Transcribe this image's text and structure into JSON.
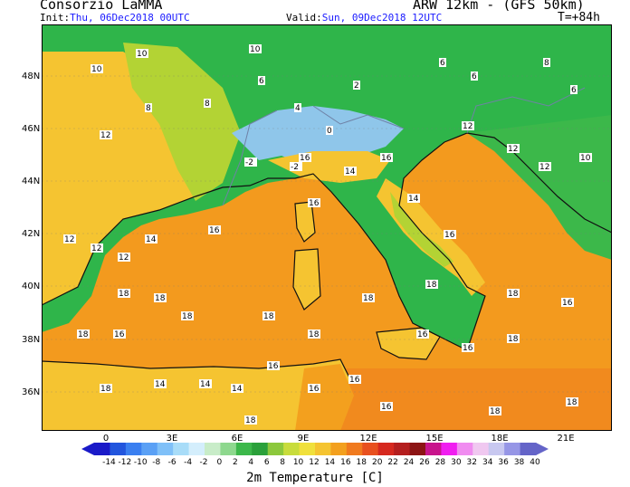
{
  "header": {
    "org": "Consorzio LaMMA",
    "model": "ARW 12km - (GFS 50km)",
    "init_label": "Init:",
    "init_value": "Thu, 06Dec2018 00UTC",
    "valid_label": "Valid:",
    "valid_value": "Sun, 09Dec2018 12UTC",
    "lead": "T=+84h"
  },
  "map": {
    "lat_labels": [
      "48N",
      "46N",
      "44N",
      "42N",
      "40N",
      "38N",
      "36N"
    ],
    "lon_labels": [
      "0",
      "3E",
      "6E",
      "9E",
      "12E",
      "15E",
      "18E",
      "21E"
    ],
    "colors": {
      "sea": "#f39a1e",
      "land_warm": "#f5c431",
      "land_mid": "#b3d334",
      "land_green": "#2fb54a",
      "alps": "#8fc6ea",
      "border": "#6f82a6"
    },
    "temp_labels": [
      "10",
      "10",
      "10",
      "8",
      "8",
      "12",
      "6",
      "4",
      "2",
      "-2",
      "-2",
      "0",
      "6",
      "6",
      "8",
      "12",
      "12",
      "12",
      "10",
      "6",
      "16",
      "16",
      "16",
      "16",
      "16",
      "14",
      "14",
      "18",
      "18",
      "18",
      "18",
      "18",
      "18",
      "18",
      "18",
      "18",
      "18",
      "12",
      "12",
      "12",
      "14",
      "14",
      "14",
      "14",
      "16",
      "16",
      "16",
      "16",
      "16",
      "16",
      "16",
      "16",
      "18",
      "18",
      "18",
      "18"
    ]
  },
  "colorbar": {
    "colors": [
      "#1a1ac8",
      "#2255dd",
      "#3a7ff0",
      "#5aa0f5",
      "#7fc0f8",
      "#a8dcf8",
      "#d4eefc",
      "#c8ecc8",
      "#8ed88e",
      "#3cb84a",
      "#2aa03a",
      "#8cc83c",
      "#c8dc3c",
      "#f0e03c",
      "#f5c431",
      "#f3a01e",
      "#f07a1e",
      "#e8501e",
      "#d6281e",
      "#b41e1e",
      "#8c1414",
      "#c8148c",
      "#f01ef0",
      "#f08cf0",
      "#f0c8f0",
      "#c8c8f0",
      "#9696e6",
      "#6464c8"
    ],
    "labels": [
      "-14",
      "-12",
      "-10",
      "-8",
      "-6",
      "-4",
      "-2",
      "0",
      "2",
      "4",
      "6",
      "8",
      "10",
      "12",
      "14",
      "16",
      "18",
      "20",
      "22",
      "24",
      "26",
      "28",
      "30",
      "32",
      "34",
      "36",
      "38",
      "40"
    ],
    "title": "2m Temperature [C]"
  }
}
